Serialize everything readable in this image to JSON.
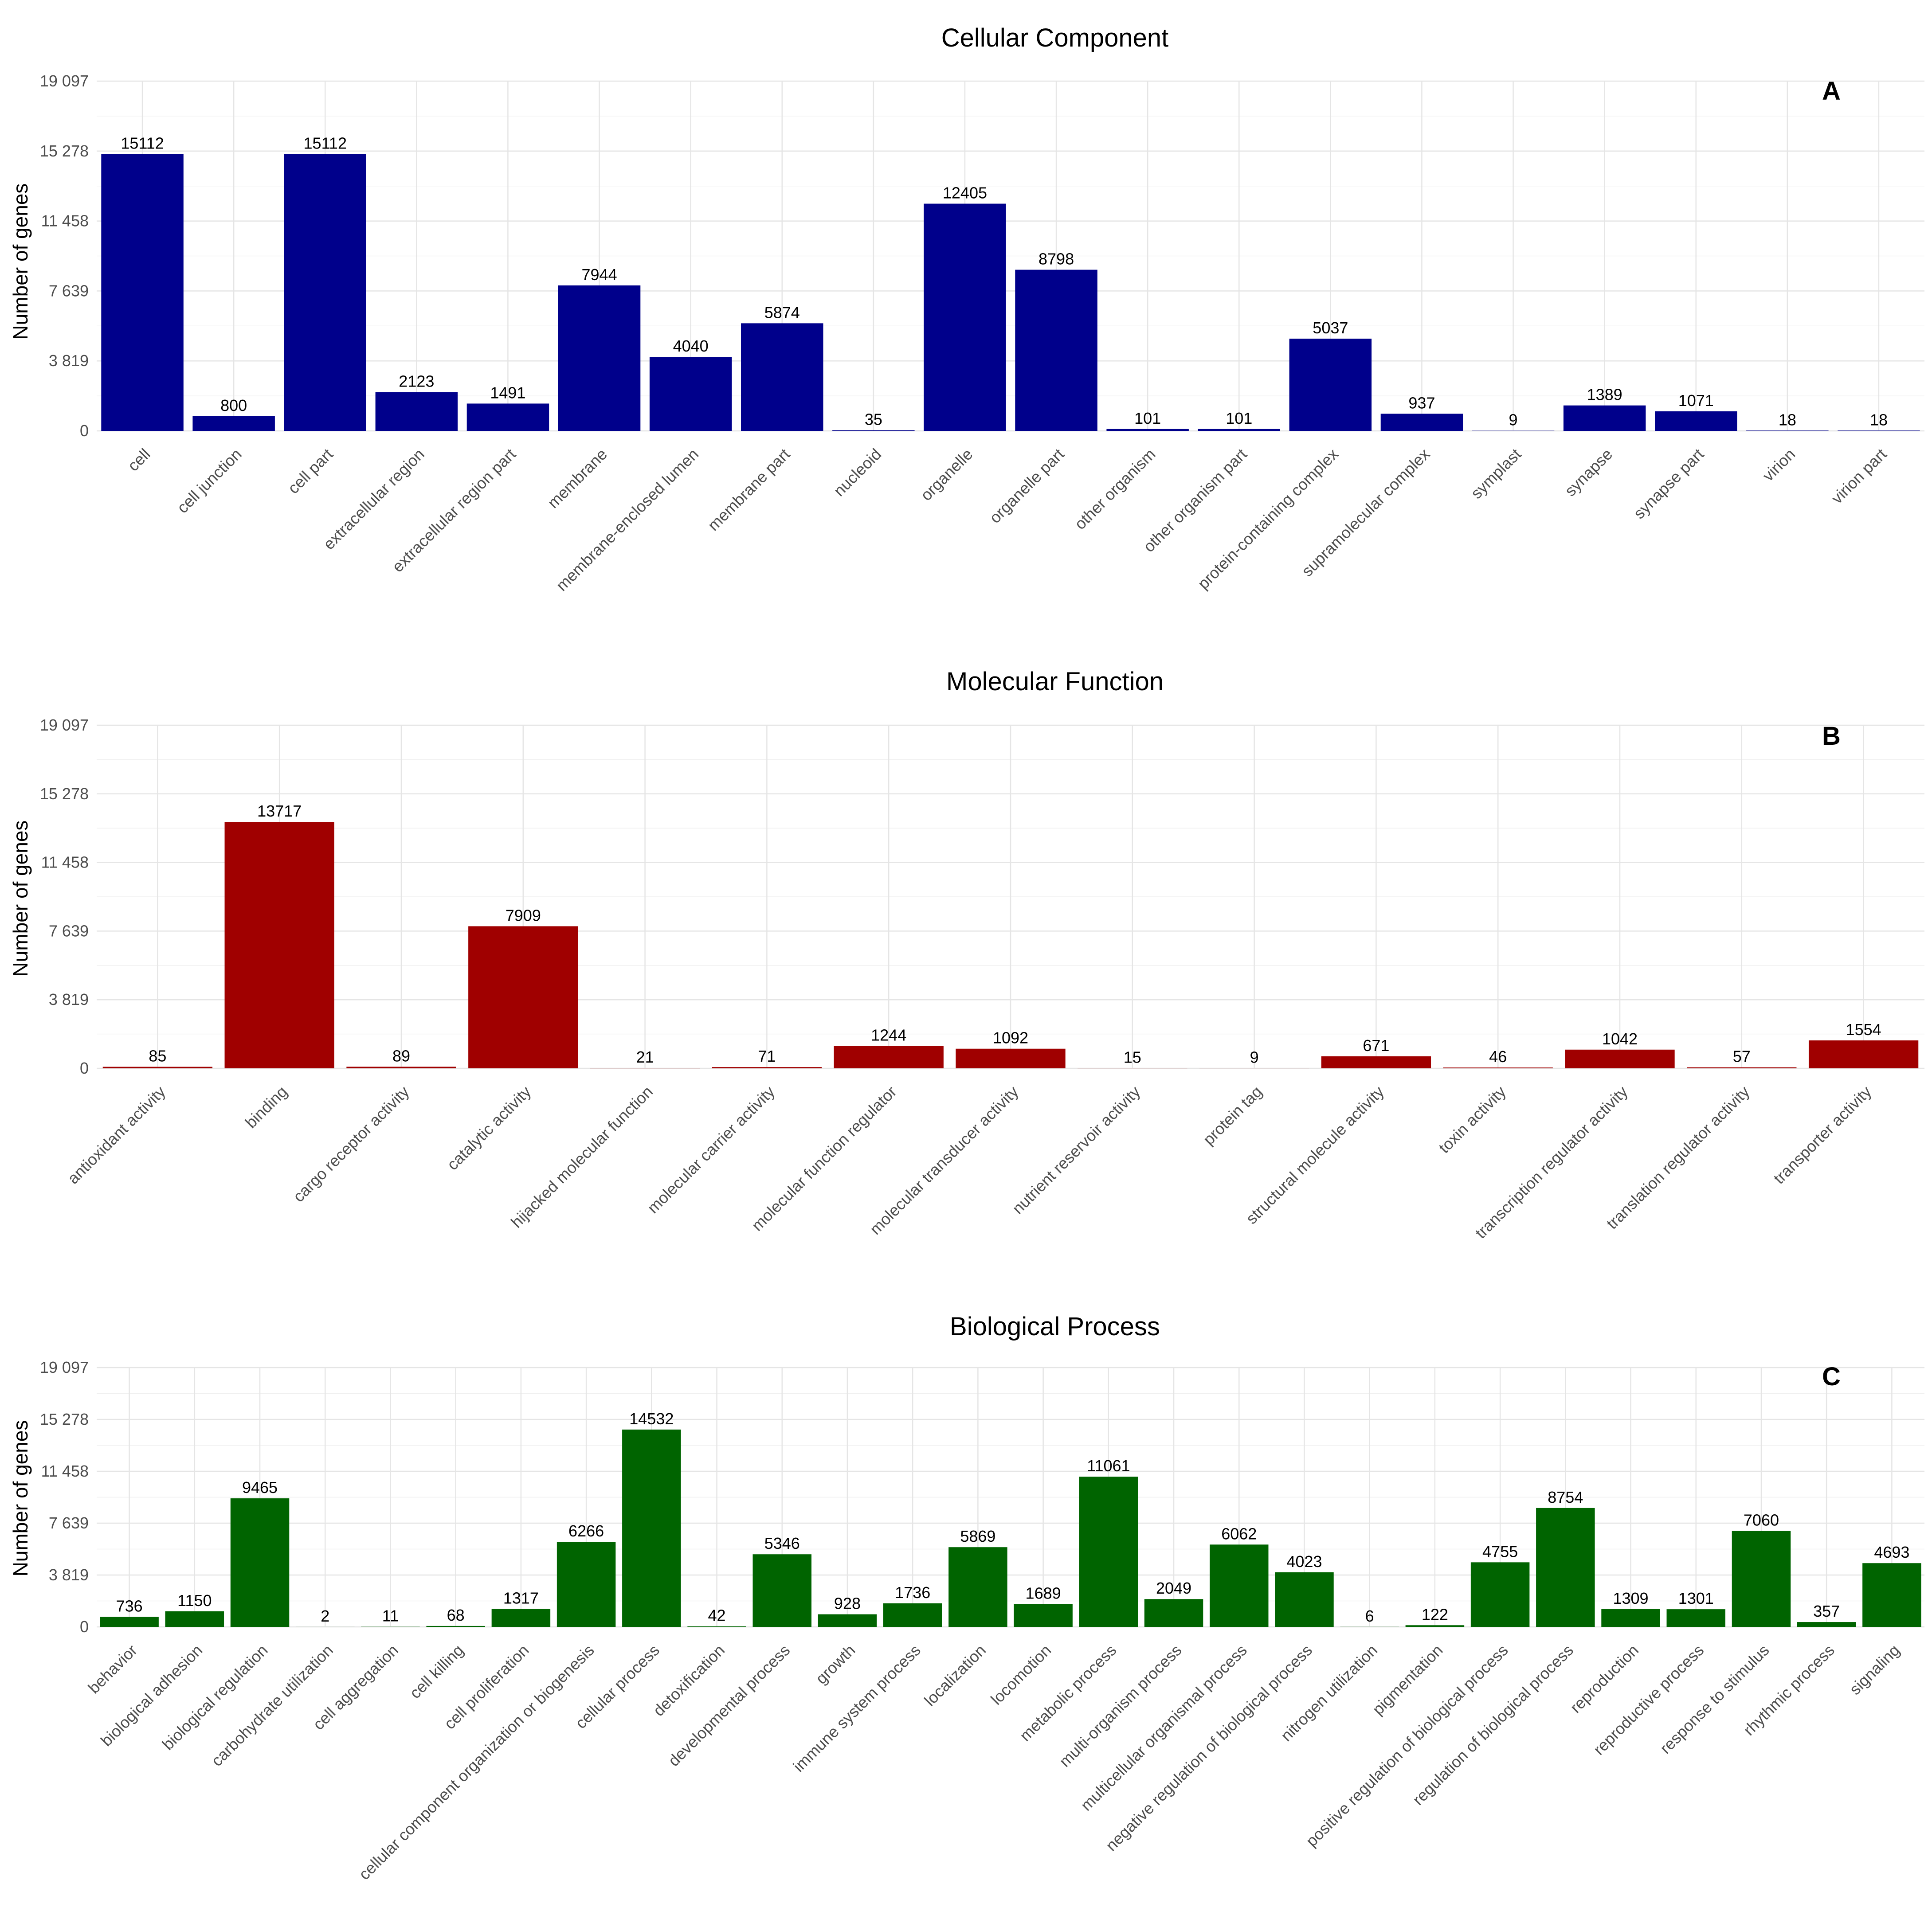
{
  "y_tick_labels": [
    "0",
    "3 819",
    "7 639",
    "11 458",
    "15 278",
    "19 097"
  ],
  "chart_data": [
    {
      "type": "bar",
      "title": "Cellular Component",
      "panel": "A",
      "ylabel": "Number of genes",
      "xlabel": "",
      "ylim": [
        0,
        19097
      ],
      "yticks": [
        0,
        3819,
        7639,
        11458,
        15278,
        19097
      ],
      "color": "#00008b",
      "categories": [
        "cell",
        "cell junction",
        "cell part",
        "extracellular region",
        "extracellular region part",
        "membrane",
        "membrane-enclosed lumen",
        "membrane part",
        "nucleoid",
        "organelle",
        "organelle part",
        "other organism",
        "other organism part",
        "protein-containing complex",
        "supramolecular complex",
        "symplast",
        "synapse",
        "synapse part",
        "virion",
        "virion part"
      ],
      "values": [
        15112,
        800,
        15112,
        2123,
        1491,
        7944,
        4040,
        5874,
        35,
        12405,
        8798,
        101,
        101,
        5037,
        937,
        9,
        1389,
        1071,
        18,
        18
      ]
    },
    {
      "type": "bar",
      "title": "Molecular Function",
      "panel": "B",
      "ylabel": "Number of genes",
      "xlabel": "",
      "ylim": [
        0,
        19097
      ],
      "yticks": [
        0,
        3819,
        7639,
        11458,
        15278,
        19097
      ],
      "color": "#a00000",
      "categories": [
        "antioxidant activity",
        "binding",
        "cargo receptor activity",
        "catalytic activity",
        "hijacked molecular function",
        "molecular carrier activity",
        "molecular function regulator",
        "molecular transducer activity",
        "nutrient reservoir activity",
        "protein tag",
        "structural molecule activity",
        "toxin activity",
        "transcription regulator activity",
        "translation regulator activity",
        "transporter activity"
      ],
      "values": [
        85,
        13717,
        89,
        7909,
        21,
        71,
        1244,
        1092,
        15,
        9,
        671,
        46,
        1042,
        57,
        1554
      ]
    },
    {
      "type": "bar",
      "title": "Biological Process",
      "panel": "C",
      "ylabel": "Number of genes",
      "xlabel": "",
      "ylim": [
        0,
        19097
      ],
      "yticks": [
        0,
        3819,
        7639,
        11458,
        15278,
        19097
      ],
      "color": "#006400",
      "categories": [
        "behavior",
        "biological adhesion",
        "biological regulation",
        "carbohydrate utilization",
        "cell aggregation",
        "cell killing",
        "cell proliferation",
        "cellular component organization or biogenesis",
        "cellular process",
        "detoxification",
        "developmental process",
        "growth",
        "immune system process",
        "localization",
        "locomotion",
        "metabolic process",
        "multi-organism process",
        "multicellular organismal process",
        "negative regulation of biological process",
        "nitrogen utilization",
        "pigmentation",
        "positive regulation of biological process",
        "regulation of biological process",
        "reproduction",
        "reproductive process",
        "response to stimulus",
        "rhythmic process",
        "signaling"
      ],
      "values": [
        736,
        1150,
        9465,
        2,
        11,
        68,
        1317,
        6266,
        14532,
        42,
        5346,
        928,
        1736,
        5869,
        1689,
        11061,
        2049,
        6062,
        4023,
        6,
        122,
        4755,
        8754,
        1309,
        1301,
        7060,
        357,
        4693
      ]
    }
  ]
}
